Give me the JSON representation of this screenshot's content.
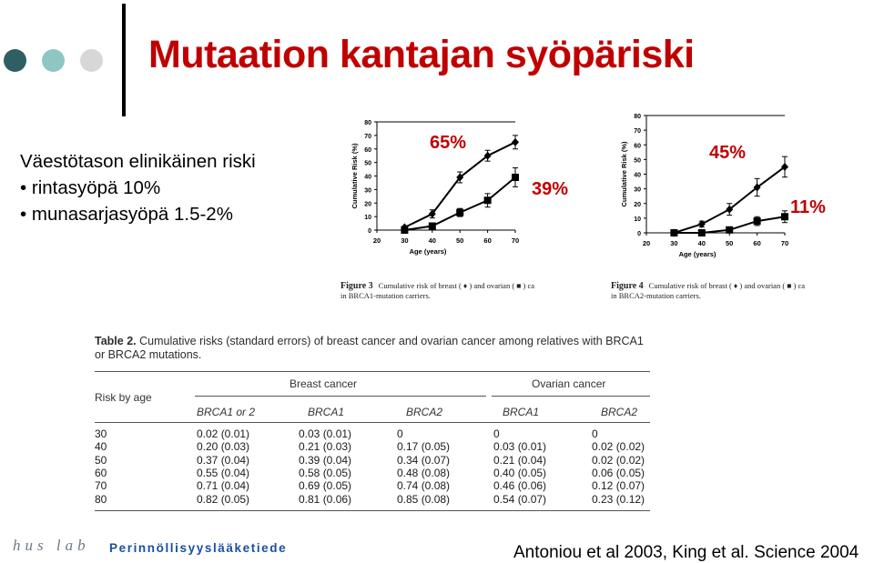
{
  "title": "Mutaation kantajan syöpäriski",
  "intro": {
    "heading": "Väestötason elinikäinen riski",
    "bullet1": "• rintasyöpä 10%",
    "bullet2": "• munasarjasyöpä 1.5-2%"
  },
  "callouts": {
    "brca1_breast": "65%",
    "brca1_ovarian": "39%",
    "brca2_breast": "45%",
    "brca2_ovarian": "11%"
  },
  "chart_data": [
    {
      "type": "line",
      "ylabel": "Cumulative Risk (%)",
      "xlabel": "Age (years)",
      "x": [
        30,
        40,
        50,
        60,
        70
      ],
      "xlim": [
        20,
        70
      ],
      "ylim": [
        0,
        80
      ],
      "xticks": [
        "20",
        "30",
        "40",
        "50",
        "60",
        "70"
      ],
      "yticks": [
        "0",
        "10",
        "20",
        "30",
        "40",
        "50",
        "60",
        "70",
        "80"
      ],
      "series": [
        {
          "marker": "diamond",
          "values": [
            2,
            12,
            39,
            55,
            65
          ],
          "err": [
            1,
            3,
            4,
            4,
            5
          ]
        },
        {
          "marker": "square",
          "values": [
            0,
            3,
            13,
            22,
            39
          ],
          "err": [
            0,
            1,
            3,
            5,
            7
          ]
        }
      ],
      "caption_label": "Figure 3",
      "caption_text": "Cumulative risk of breast ( ♦ ) and ovarian ( ■ ) ca",
      "caption_line2": "in BRCA1-mutation carriers."
    },
    {
      "type": "line",
      "ylabel": "Cumulative Risk (%)",
      "xlabel": "Age (years)",
      "x": [
        30,
        40,
        50,
        60,
        70
      ],
      "xlim": [
        20,
        70
      ],
      "ylim": [
        0,
        80
      ],
      "xticks": [
        "20",
        "30",
        "40",
        "50",
        "60",
        "70"
      ],
      "yticks": [
        "0",
        "10",
        "20",
        "30",
        "40",
        "50",
        "60",
        "70",
        "80"
      ],
      "series": [
        {
          "marker": "diamond",
          "values": [
            0,
            6,
            16,
            31,
            45
          ],
          "err": [
            0,
            2,
            4,
            6,
            7
          ]
        },
        {
          "marker": "square",
          "values": [
            0,
            0,
            2,
            8,
            11
          ],
          "err": [
            0,
            0,
            1,
            3,
            4
          ]
        }
      ],
      "caption_label": "Figure 4",
      "caption_text": "Cumulative risk of breast ( ♦ ) and ovarian ( ■ ) ca",
      "caption_line2": "in BRCA2-mutation carriers."
    }
  ],
  "table": {
    "label": "Table 2.",
    "caption": "Cumulative risks (standard errors) of breast cancer and ovarian cancer among relatives with BRCA1 or BRCA2 mutations.",
    "group_breast": "Breast cancer",
    "group_ovarian": "Ovarian cancer",
    "row_header": "Risk by age",
    "columns": [
      "BRCA1 or 2",
      "BRCA1",
      "BRCA2",
      "BRCA1",
      "BRCA2"
    ],
    "rows": [
      [
        "30",
        "0.02 (0.01)",
        "0.03 (0.01)",
        "0",
        "0",
        "0"
      ],
      [
        "40",
        "0.20 (0.03)",
        "0.21 (0.03)",
        "0.17 (0.05)",
        "0.03 (0.01)",
        "0.02 (0.02)"
      ],
      [
        "50",
        "0.37 (0.04)",
        "0.39 (0.04)",
        "0.34 (0.07)",
        "0.21 (0.04)",
        "0.02 (0.02)"
      ],
      [
        "60",
        "0.55 (0.04)",
        "0.58 (0.05)",
        "0.48 (0.08)",
        "0.40 (0.05)",
        "0.06 (0.05)"
      ],
      [
        "70",
        "0.71 (0.04)",
        "0.69 (0.05)",
        "0.74 (0.08)",
        "0.46 (0.06)",
        "0.12 (0.07)"
      ],
      [
        "80",
        "0.82 (0.05)",
        "0.81 (0.06)",
        "0.85 (0.08)",
        "0.54 (0.07)",
        "0.23 (0.12)"
      ]
    ]
  },
  "footer": {
    "logo": "hus lab",
    "department": "Perinnöllisyyslääketiede",
    "reference": "Antoniou et al 2003, King et al. Science 2004"
  },
  "colors": {
    "title": "#c00000",
    "dot_dark": "#2e5f63",
    "dot_mid": "#8fc6c4",
    "dot_light": "#d7d7d7",
    "department": "#1a4fa0"
  }
}
